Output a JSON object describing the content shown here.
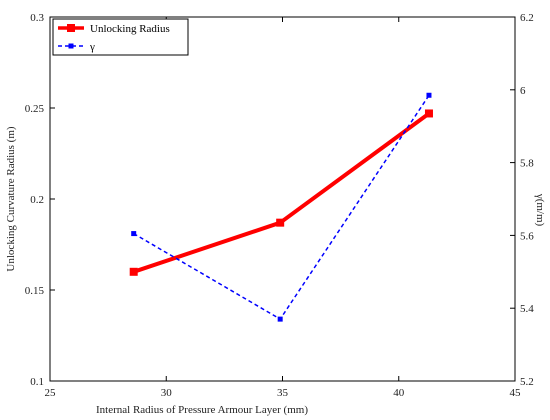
{
  "chart_data": {
    "type": "line",
    "xlabel": "Internal Radius of Pressure Armour Layer (mm)",
    "ylabel_left": "Unlocking Curvature Radius (m)",
    "ylabel_right": "γ(m/m)",
    "xlim": [
      25,
      45
    ],
    "ylim_left": [
      0.1,
      0.3
    ],
    "ylim_right": [
      5.2,
      6.2
    ],
    "x_ticks": [
      "25",
      "30",
      "35",
      "40",
      "45"
    ],
    "y_left_ticks": [
      "0.1",
      "0.15",
      "0.2",
      "0.25",
      "0.3"
    ],
    "y_right_ticks": [
      "5.2",
      "5.4",
      "5.6",
      "5.8",
      "6",
      "6.2"
    ],
    "grid": false,
    "legend_position": "top-left",
    "series": [
      {
        "name": "Unlocking Radius",
        "axis": "left",
        "color": "#ff0000",
        "style": "solid",
        "marker": "square",
        "x": [
          28.6,
          34.9,
          41.3
        ],
        "y": [
          0.16,
          0.187,
          0.247
        ]
      },
      {
        "name": "γ",
        "axis": "right",
        "color": "#0000ff",
        "style": "dashed",
        "marker": "square",
        "x": [
          28.6,
          34.9,
          41.3
        ],
        "y": [
          5.605,
          5.37,
          5.985
        ]
      }
    ]
  }
}
